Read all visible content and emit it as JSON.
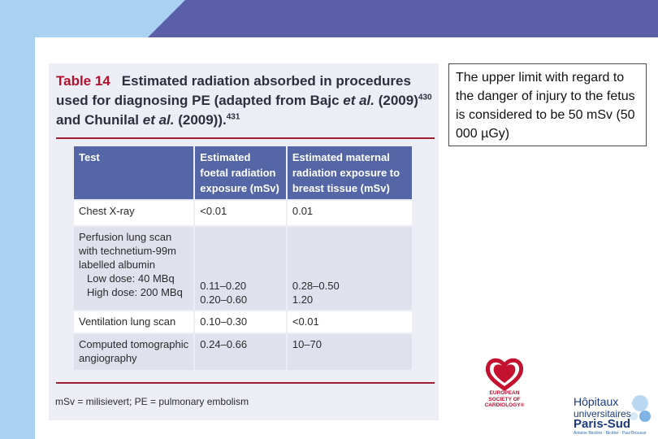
{
  "colors": {
    "header_light": "#a9d1f2",
    "header_dark": "#5b5ea8",
    "table_header": "#5566a6",
    "table_number": "#b3112f",
    "rule": "#9b1e33"
  },
  "table_figure": {
    "number": "Table 14",
    "title_part1": "Estimated radiation absorbed in procedures used for diagnosing PE (adapted from Bajc ",
    "title_etal1": "et al.",
    "title_part2": " (2009)",
    "title_ref1": "430",
    "title_part3": " and Chunilal ",
    "title_etal2": "et al.",
    "title_part4": " (2009)).",
    "title_ref2": "431",
    "headers": [
      "Test",
      "Estimated foetal radiation exposure (mSv)",
      "Estimated maternal radiation exposure to breast tissue (mSv)"
    ],
    "rows": {
      "chest": {
        "test": "Chest X-ray",
        "foetal": "<0.01",
        "maternal": "0.01"
      },
      "perfusion": {
        "test": "Perfusion lung scan with technetium-99m labelled albumin",
        "low_label": "Low dose: 40 MBq",
        "high_label": "High dose: 200 MBq",
        "foetal_low": "0.11–0.20",
        "foetal_high": "0.20–0.60",
        "maternal_low": "0.28–0.50",
        "maternal_high": "1.20"
      },
      "ventilation": {
        "test": "Ventilation lung scan",
        "foetal": "0.10–0.30",
        "maternal": "<0.01"
      },
      "ct": {
        "test": "Computed tomographic angiography",
        "foetal": "0.24–0.66",
        "maternal": "10–70"
      }
    },
    "footnote": "mSv = milisievert; PE = pulmonary embolism"
  },
  "callout": {
    "text": "The upper limit with regard to the danger of injury to the fetus is considered to be 50 mSv (50 000 µGy)"
  },
  "logos": {
    "esc": {
      "line1": "EUROPEAN",
      "line2": "SOCIETY OF",
      "line3": "CARDIOLOGY®",
      "icon": "esc-heart-icon"
    },
    "hopitaux": {
      "line1": "Hôpitaux",
      "line2": "universitaires",
      "line3": "Paris-Sud",
      "line4": "Antoine Béclère · Bicêtre · Paul Brousse"
    }
  }
}
